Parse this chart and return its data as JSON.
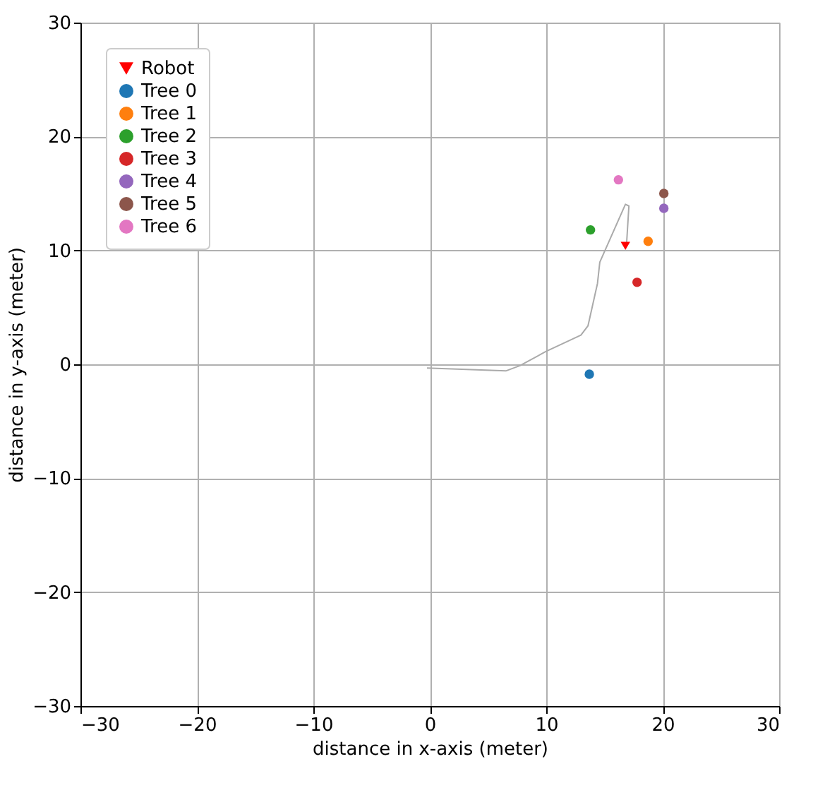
{
  "chart_data": {
    "type": "scatter",
    "xlabel": "distance in x-axis (meter)",
    "ylabel": "distance in y-axis (meter)",
    "xlim": [
      -30,
      30
    ],
    "ylim": [
      -30,
      30
    ],
    "xticks": [
      -30,
      -20,
      -10,
      0,
      10,
      20,
      30
    ],
    "yticks": [
      -30,
      -20,
      -10,
      0,
      10,
      20,
      30
    ],
    "grid": true,
    "legend": "top left",
    "series": [
      {
        "type": "line",
        "color": "#aaaaaa",
        "x": [
          -0.24,
          6.53,
          7.74,
          9.96,
          12.98,
          13.59,
          14.4,
          14.6,
          16.8,
          17.1,
          16.9
        ],
        "values": [
          -0.33,
          -0.58,
          -0.12,
          1.12,
          2.56,
          3.39,
          7.1,
          8.97,
          14.05,
          13.9,
          10.6
        ]
      },
      {
        "name": "Robot",
        "color": "#ff0000",
        "marker": "triangle",
        "x": [
          16.8
        ],
        "values": [
          10.4
        ]
      },
      {
        "name": "Tree 0",
        "color": "#1f77b4",
        "x": [
          13.7
        ],
        "values": [
          -0.87
        ]
      },
      {
        "name": "Tree 1",
        "color": "#ff7f0e",
        "x": [
          18.75
        ],
        "values": [
          10.8
        ]
      },
      {
        "name": "Tree 2",
        "color": "#2ca02c",
        "x": [
          13.8
        ],
        "values": [
          11.8
        ]
      },
      {
        "name": "Tree 3",
        "color": "#d62728",
        "x": [
          17.8
        ],
        "values": [
          7.2
        ]
      },
      {
        "name": "Tree 4",
        "color": "#9467bd",
        "x": [
          20.1
        ],
        "values": [
          13.7
        ]
      },
      {
        "name": "Tree 5",
        "color": "#8c564b",
        "x": [
          20.1
        ],
        "values": [
          15.0
        ]
      },
      {
        "name": "Tree 6",
        "color": "#e377c2",
        "x": [
          16.2
        ],
        "values": [
          16.2
        ]
      }
    ]
  }
}
